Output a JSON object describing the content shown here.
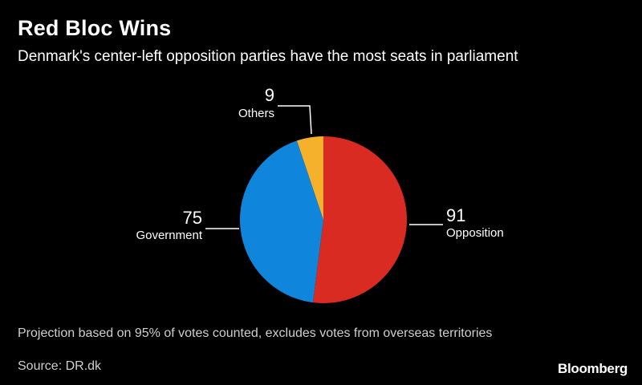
{
  "header": {
    "title": "Red Bloc Wins",
    "subtitle": "Denmark's center-left opposition parties have the most seats in parliament"
  },
  "chart_data": {
    "type": "pie",
    "title": "Red Bloc Wins",
    "subtitle": "Denmark's center-left opposition parties have the most seats in parliament",
    "start": "top",
    "direction": "clockwise",
    "slices": [
      {
        "label": "Opposition",
        "value": 91,
        "color": "#d92b22"
      },
      {
        "label": "Government",
        "value": 75,
        "color": "#0f86dc"
      },
      {
        "label": "Others",
        "value": 9,
        "color": "#f5b12b"
      }
    ]
  },
  "footer": {
    "note": "Projection based on 95% of votes counted, excludes votes from overseas territories",
    "source": "Source: DR.dk",
    "brand": "Bloomberg"
  }
}
